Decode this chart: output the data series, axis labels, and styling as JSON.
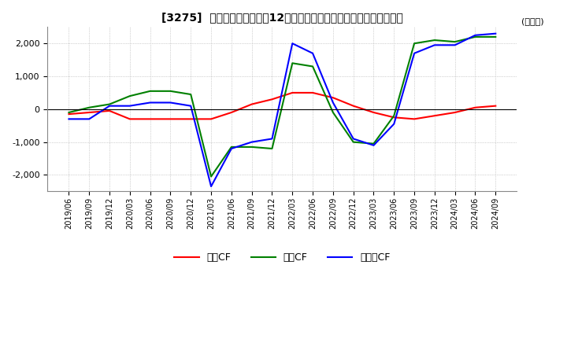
{
  "title": "[3275]  キャッシュフローの12か月移動合計の対前年同期増減額の推移",
  "ylabel": "(百万円)",
  "ylim": [
    -2500,
    2500
  ],
  "yticks": [
    -2000,
    -1000,
    0,
    1000,
    2000
  ],
  "legend_labels": [
    "営業CF",
    "投資CF",
    "フリーCF"
  ],
  "colors": [
    "#ff0000",
    "#008000",
    "#0000ff"
  ],
  "dates": [
    "2019/06",
    "2019/09",
    "2019/12",
    "2020/03",
    "2020/06",
    "2020/09",
    "2020/12",
    "2021/03",
    "2021/06",
    "2021/09",
    "2021/12",
    "2022/03",
    "2022/06",
    "2022/09",
    "2022/12",
    "2023/03",
    "2023/06",
    "2023/09",
    "2023/12",
    "2024/03",
    "2024/06",
    "2024/09"
  ],
  "operating_cf": [
    -150,
    -100,
    -50,
    -300,
    -300,
    -300,
    -300,
    -300,
    -100,
    150,
    300,
    500,
    500,
    350,
    100,
    -100,
    -250,
    -300,
    -200,
    -100,
    50,
    100
  ],
  "investing_cf": [
    -100,
    50,
    150,
    400,
    550,
    550,
    450,
    -2050,
    -1150,
    -1150,
    -1200,
    1400,
    1300,
    -100,
    -1000,
    -1050,
    -200,
    2000,
    2100,
    2050,
    2200,
    2200
  ],
  "free_cf": [
    -300,
    -300,
    100,
    100,
    200,
    200,
    100,
    -2350,
    -1200,
    -1000,
    -900,
    2000,
    1700,
    200,
    -900,
    -1100,
    -450,
    1700,
    1950,
    1950,
    2250,
    2300
  ]
}
